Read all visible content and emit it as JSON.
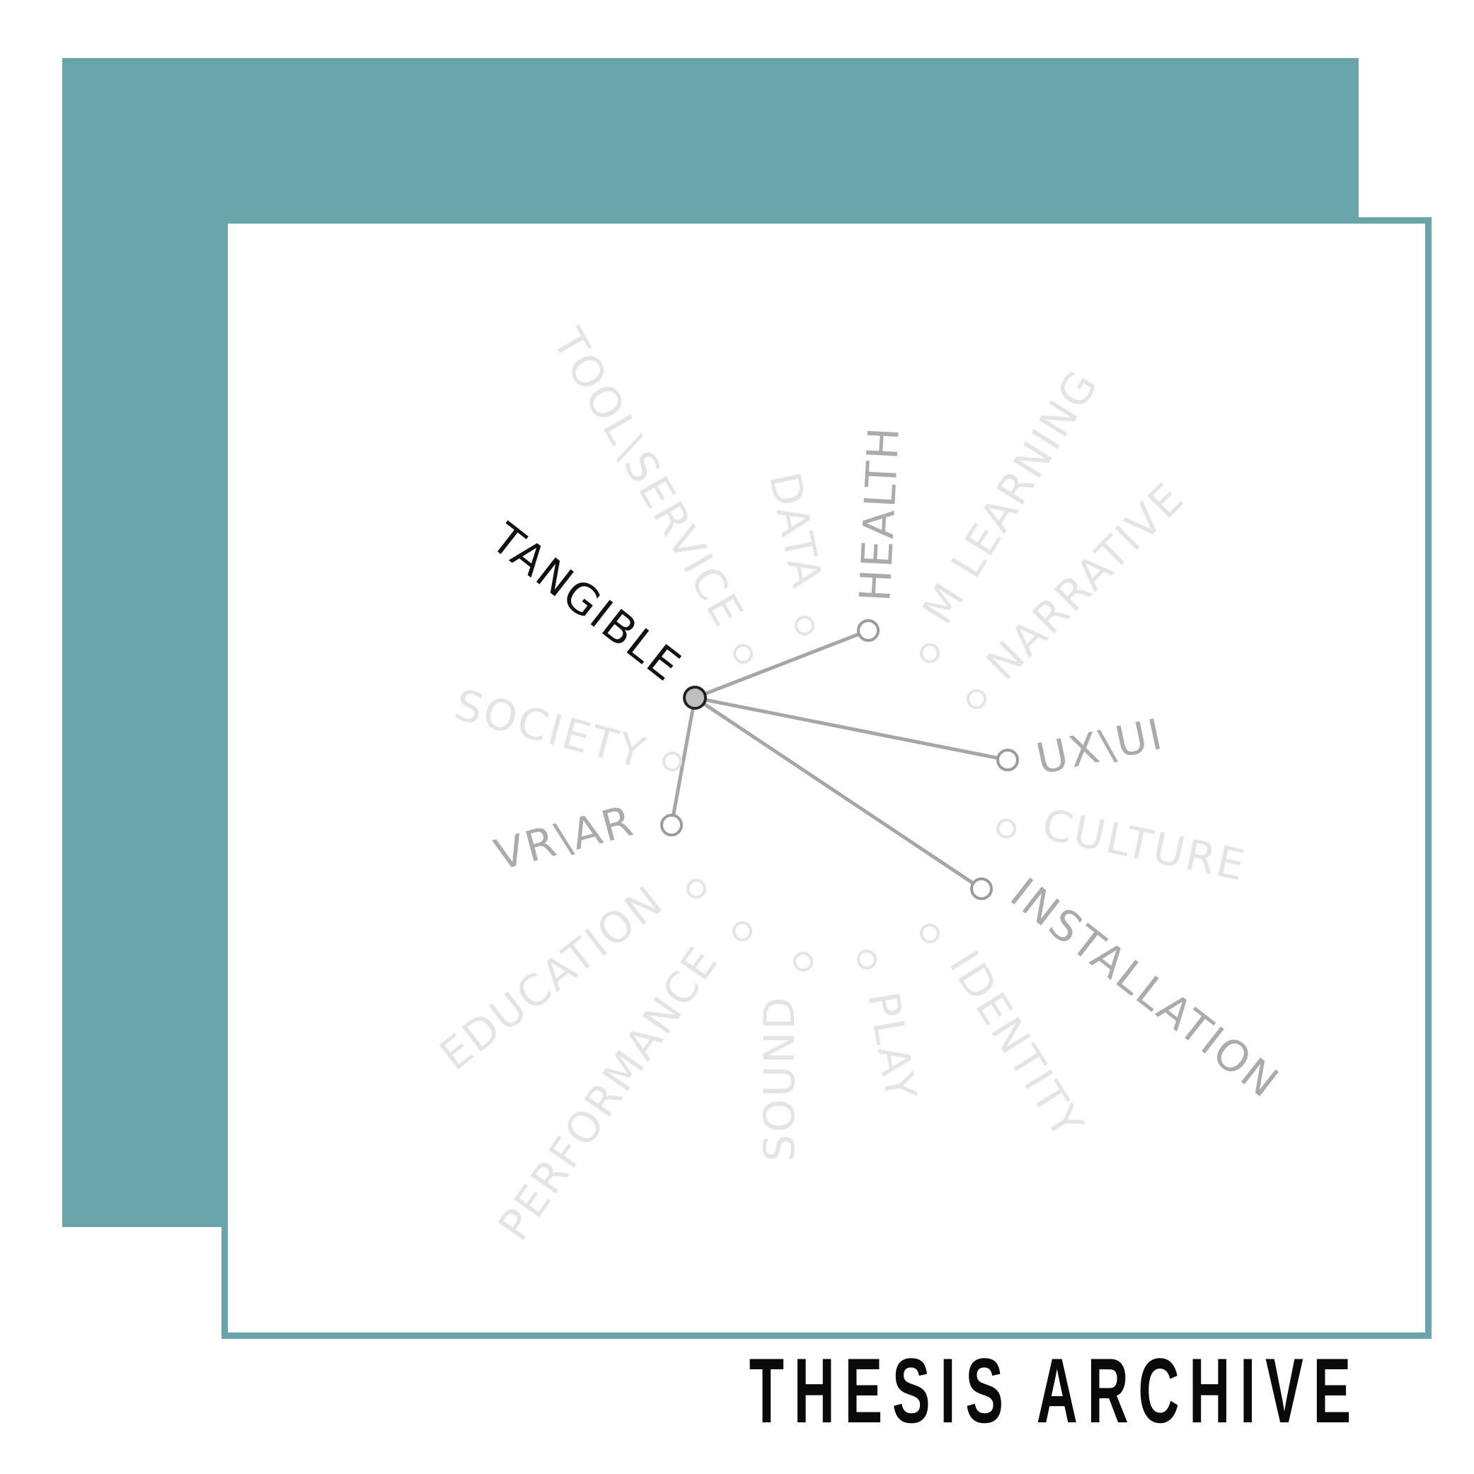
{
  "title": "THESIS   ARCHIVE",
  "diagram": {
    "active_node": "TANGIBLE",
    "nodes": [
      {
        "id": "tangible",
        "label": "TANGIBLE",
        "state": "active"
      },
      {
        "id": "health",
        "label": "HEALTH",
        "state": "connected"
      },
      {
        "id": "uxui",
        "label": "UX\\UI",
        "state": "connected"
      },
      {
        "id": "installation",
        "label": "INSTALLATION",
        "state": "connected"
      },
      {
        "id": "vrar",
        "label": "VR\\AR",
        "state": "connected"
      },
      {
        "id": "toolservice",
        "label": "TOOL\\SERVICE",
        "state": "inactive"
      },
      {
        "id": "data",
        "label": "DATA",
        "state": "inactive"
      },
      {
        "id": "mlearning",
        "label": "M LEARNING",
        "state": "inactive"
      },
      {
        "id": "narrative",
        "label": "NARRATIVE",
        "state": "inactive"
      },
      {
        "id": "culture",
        "label": "CULTURE",
        "state": "inactive"
      },
      {
        "id": "identity",
        "label": "IDENTITY",
        "state": "inactive"
      },
      {
        "id": "play",
        "label": "PLAY",
        "state": "inactive"
      },
      {
        "id": "sound",
        "label": "SOUND",
        "state": "inactive"
      },
      {
        "id": "performance",
        "label": "PERFORMANCE",
        "state": "inactive"
      },
      {
        "id": "education",
        "label": "EDUCATION",
        "state": "inactive"
      },
      {
        "id": "society",
        "label": "SOCIETY",
        "state": "inactive"
      }
    ],
    "edges": [
      [
        "tangible",
        "health"
      ],
      [
        "tangible",
        "uxui"
      ],
      [
        "tangible",
        "installation"
      ],
      [
        "tangible",
        "vrar"
      ]
    ]
  },
  "colors": {
    "accent": "#6aa5ab",
    "active": "#111111",
    "connected": "#ababab",
    "inactive": "#e4e4e4"
  }
}
